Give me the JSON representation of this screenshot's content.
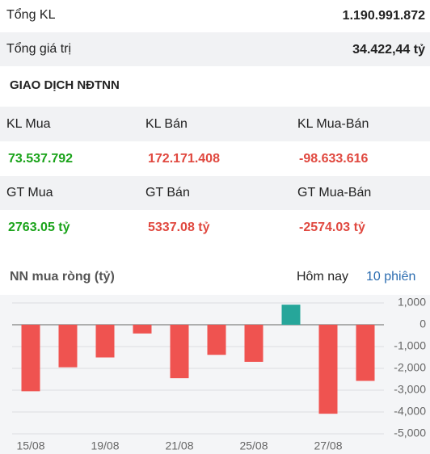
{
  "summary": {
    "rows": [
      [
        "Tổng KL",
        "1.190.991.872"
      ],
      [
        "Tổng giá trị",
        "34.422,44 tỷ"
      ]
    ]
  },
  "section_title": "GIAO DỊCH NĐTNN",
  "table": {
    "rows": [
      [
        "KL Mua",
        "KL Bán",
        "KL Mua-Bán"
      ],
      [
        "73.537.792",
        "172.171.408",
        "-98.633.616"
      ],
      [
        "GT Mua",
        "GT Bán",
        "GT Mua-Bán"
      ],
      [
        "2763.05 tỷ",
        "5337.08 tỷ",
        "-2574.03 tỷ"
      ]
    ]
  },
  "tabs": [
    "Hôm nay",
    "10 phiên"
  ],
  "chart_data": {
    "type": "bar",
    "title": "NN mua ròng (tỷ)",
    "categories": [
      "15/08",
      null,
      "19/08",
      null,
      "21/08",
      null,
      "25/08",
      null,
      "27/08",
      null
    ],
    "values": [
      -3050,
      -1950,
      -1500,
      -400,
      -2450,
      -1380,
      -1700,
      920,
      -4080,
      -2574
    ],
    "colors": {
      "positive": "#26a69a",
      "negative": "#ef5350"
    },
    "ylim": [
      -5000,
      1000
    ],
    "yticks": [
      {
        "value": 1000,
        "label": "1,000"
      },
      0,
      {
        "value": -1000,
        "label": "-1,000"
      },
      {
        "value": -2000,
        "label": "-2,000"
      },
      {
        "value": -3000,
        "label": "-3,000"
      },
      {
        "value": -4000,
        "label": "-4,000"
      },
      {
        "value": -5000,
        "label": "-5,000"
      }
    ],
    "grid": true
  }
}
